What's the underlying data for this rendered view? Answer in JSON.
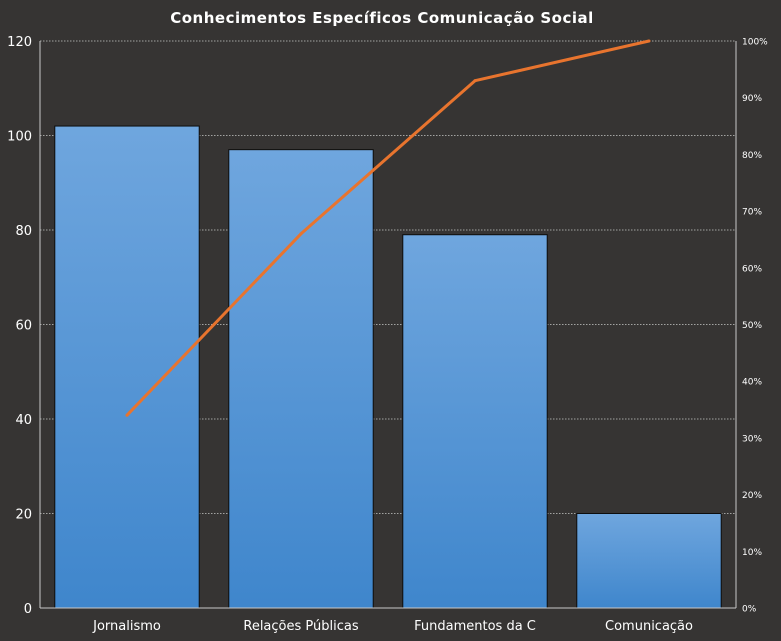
{
  "chart_data": {
    "type": "bar",
    "title": "Conhecimentos Específicos Comunicação Social",
    "categories": [
      "Jornalismo",
      "Relações Públicas",
      "Fundamentos  da C",
      "Comunicação"
    ],
    "series": [
      {
        "values": [
          102,
          97,
          79,
          20
        ],
        "axis": "left",
        "kind": "bar"
      },
      {
        "values": [
          0.34,
          0.66,
          0.93,
          1.0
        ],
        "axis": "right",
        "kind": "line"
      }
    ],
    "ylim": [
      0,
      120
    ],
    "y_ticks": [
      "0",
      "20",
      "40",
      "60",
      "80",
      "100",
      "120"
    ],
    "y2lim": [
      0,
      1
    ],
    "y2_ticks": [
      "0%",
      "10%",
      "20%",
      "30%",
      "40%",
      "50%",
      "60%",
      "70%",
      "80%",
      "90%",
      "100%"
    ],
    "grid": true,
    "legend": "none",
    "colors": {
      "background": "#363433",
      "bar_top": "#6fa6de",
      "bar_bottom": "#3f86cc",
      "bar_edge": "#0d0d0d",
      "line": "#e8742e",
      "grid": "#c8c8c8",
      "text": "#ffffff"
    }
  }
}
